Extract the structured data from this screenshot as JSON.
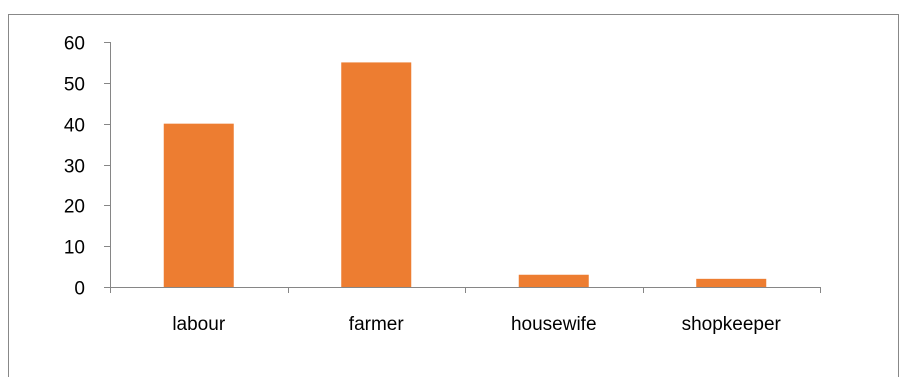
{
  "colors": {
    "bar": "#ED7D31",
    "axis": "#868686",
    "border": "#888888",
    "text": "#000000"
  },
  "chart_data": {
    "type": "bar",
    "title": "",
    "xlabel": "",
    "ylabel": "",
    "categories": [
      "labour",
      "farmer",
      "housewife",
      "shopkeeper"
    ],
    "values": [
      40,
      55,
      3,
      2
    ],
    "ylim": [
      0,
      60
    ],
    "yticks": [
      0,
      10,
      20,
      30,
      40,
      50,
      60
    ],
    "grid": false,
    "legend": "none"
  }
}
